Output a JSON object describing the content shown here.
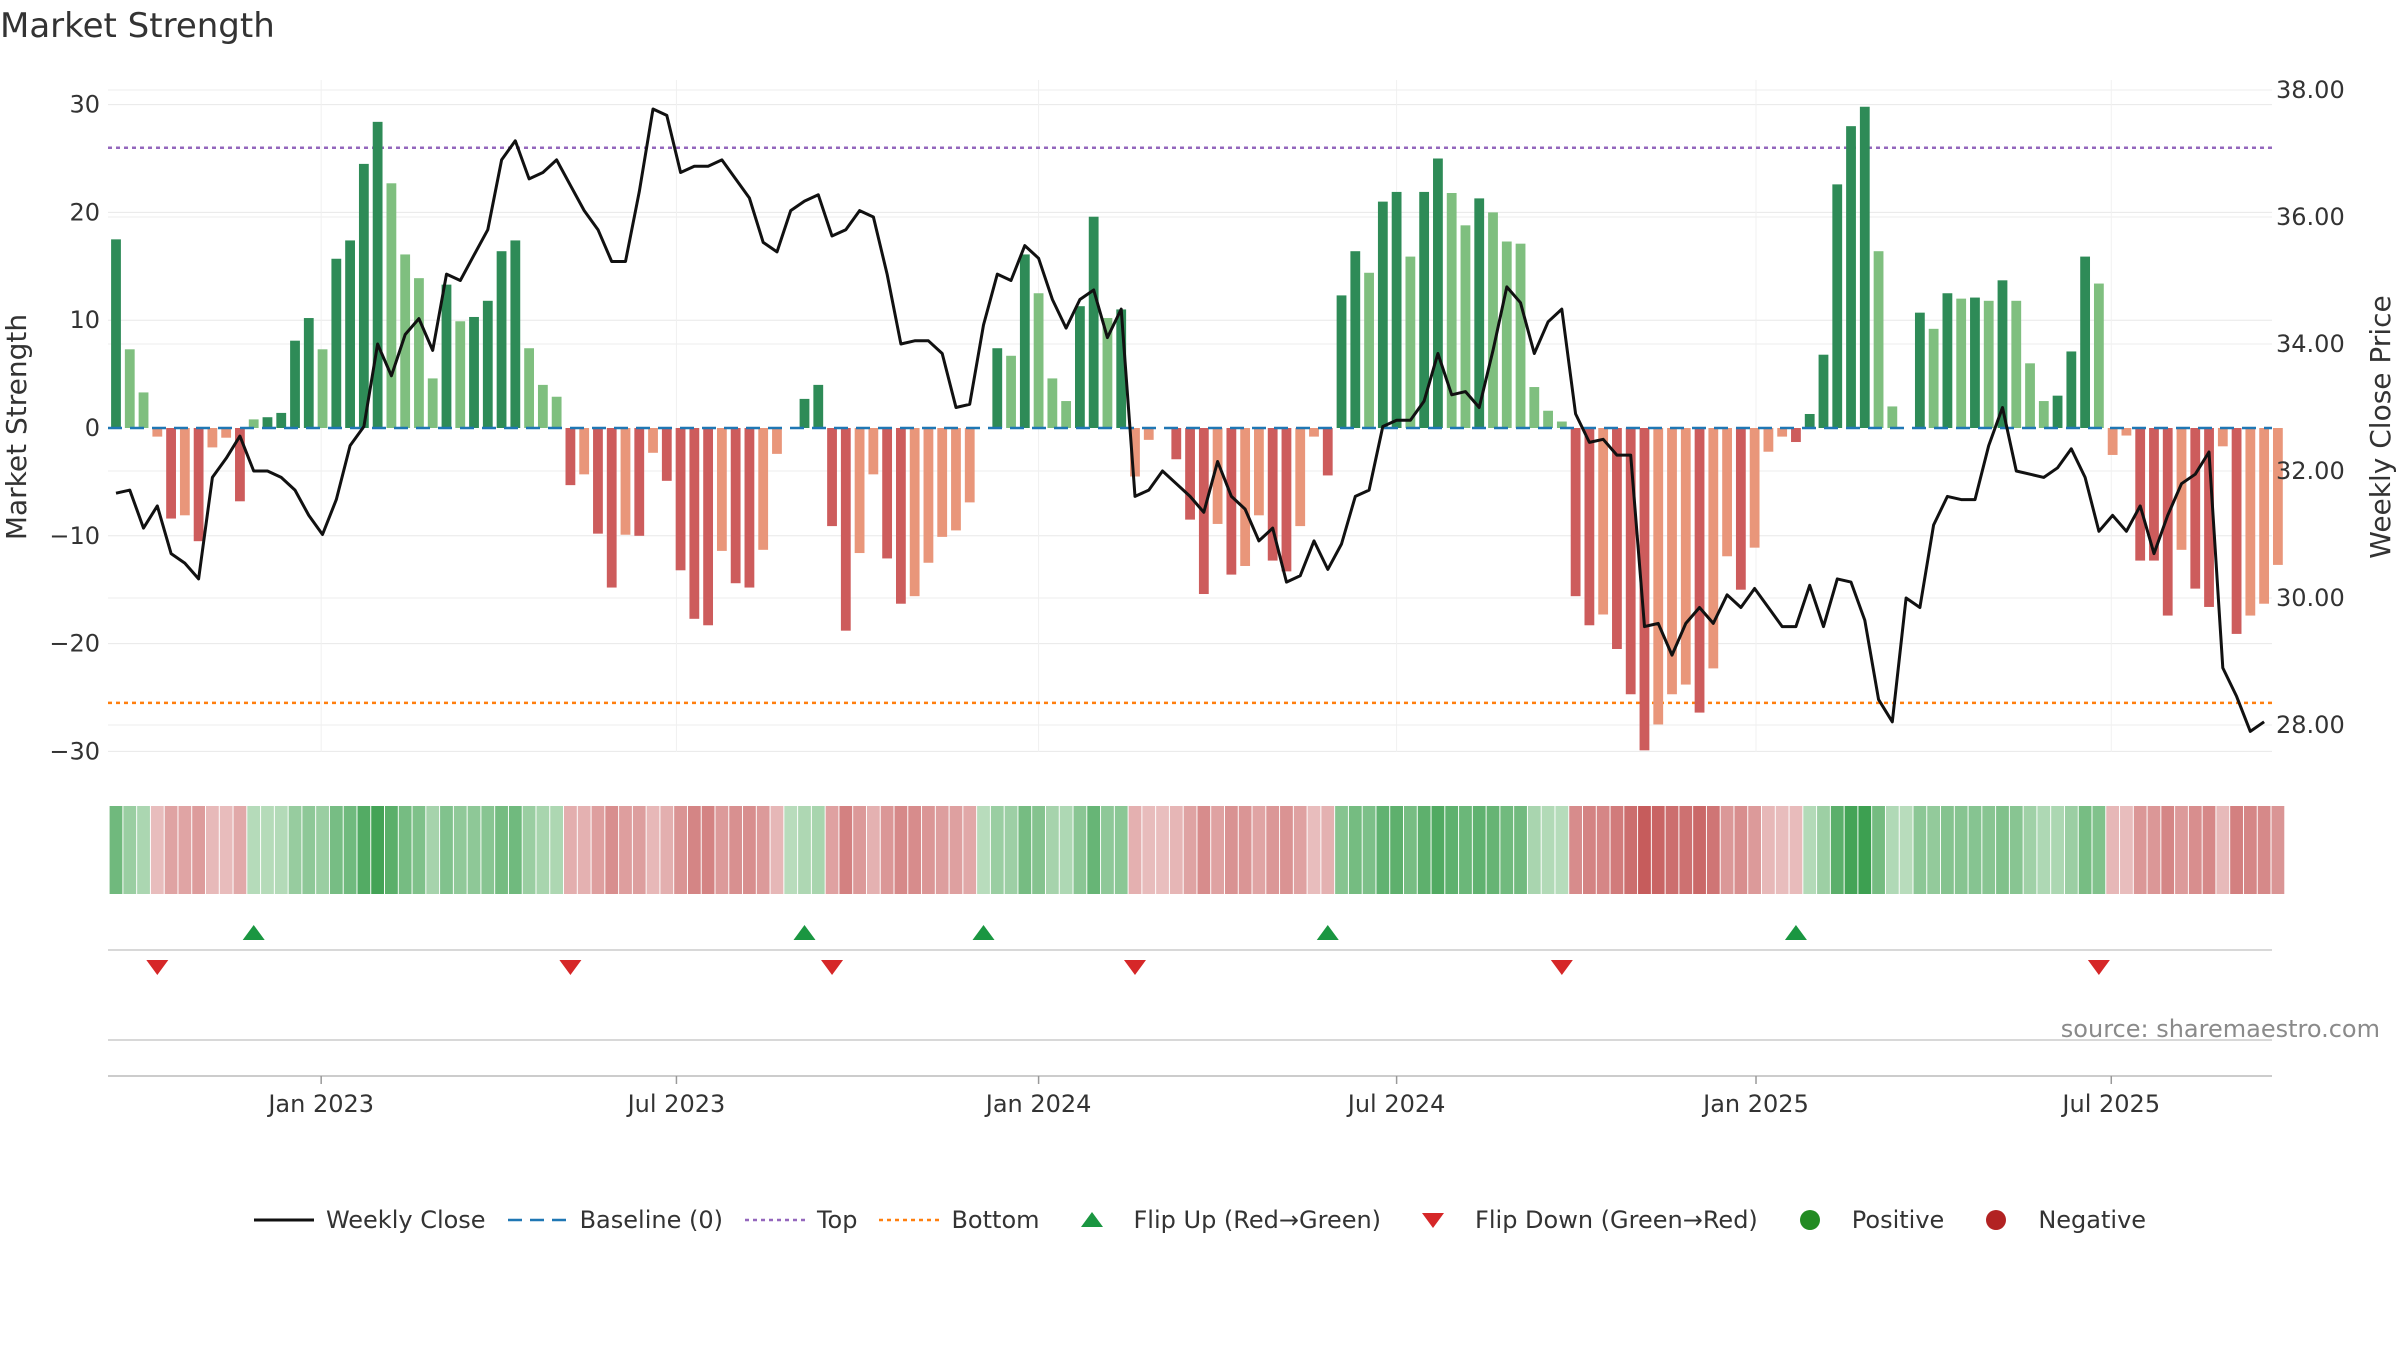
{
  "title": "Market Strength",
  "source": "source: sharemaestro.com",
  "chart_data": {
    "type": "bar+line",
    "title": "Market Strength",
    "ylabel_left": "Market Strength",
    "ylabel_right": "Weekly Close Price",
    "ylim_left": [
      -35,
      32
    ],
    "ylim_right": [
      27.0,
      38.4
    ],
    "yticks_left": [
      30,
      20,
      10,
      0,
      -10,
      -20,
      -30
    ],
    "yticks_left_labels": [
      "30",
      "20",
      "10",
      "0",
      "−10",
      "−20",
      "−30"
    ],
    "yticks_right": [
      38,
      36,
      34,
      32,
      30,
      28
    ],
    "yticks_right_labels": [
      "38.00",
      "36.00",
      "34.00",
      "32.00",
      "30.00",
      "28.00"
    ],
    "x_start_week": -1,
    "x_end_week": 155,
    "x_ticks": [
      {
        "week": 14.9,
        "label": "Jan 2023"
      },
      {
        "week": 40.7,
        "label": "Jul 2023"
      },
      {
        "week": 67,
        "label": "Jan 2024"
      },
      {
        "week": 93,
        "label": "Jul 2024"
      },
      {
        "week": 119.1,
        "label": "Jan 2025"
      },
      {
        "week": 144.9,
        "label": "Jul 2025"
      }
    ],
    "top_level": 26,
    "bottom_level": -25.5,
    "baseline": 0,
    "strength": [
      17.5,
      7.3,
      3.3,
      -0.8,
      -8.4,
      -8.1,
      -10.5,
      -1.8,
      -0.9,
      -6.8,
      0.8,
      1.0,
      1.4,
      8.1,
      10.2,
      7.3,
      15.7,
      17.4,
      24.5,
      28.4,
      22.7,
      16.1,
      13.9,
      4.6,
      13.3,
      9.9,
      10.3,
      11.8,
      16.4,
      17.4,
      7.4,
      4.0,
      2.9,
      -5.3,
      -4.3,
      -9.8,
      -14.8,
      -9.9,
      -10.0,
      -2.3,
      -4.9,
      -13.2,
      -17.7,
      -18.3,
      -11.4,
      -14.4,
      -14.8,
      -11.3,
      -2.4,
      0,
      2.7,
      4.0,
      -9.1,
      -18.8,
      -11.6,
      -4.3,
      -12.1,
      -16.3,
      -15.6,
      -12.5,
      -10.1,
      -9.5,
      -6.9,
      0,
      7.4,
      6.7,
      16.1,
      12.5,
      4.6,
      2.5,
      11.3,
      19.6,
      10.2,
      11.0,
      -4.5,
      -1.1,
      0,
      -2.9,
      -8.5,
      -15.4,
      -8.9,
      -13.6,
      -12.8,
      -8.1,
      -12.3,
      -13.3,
      -9.1,
      -0.8,
      -4.4,
      12.3,
      16.4,
      14.4,
      21.0,
      21.9,
      15.9,
      21.9,
      25.0,
      21.8,
      18.8,
      21.3,
      20.0,
      17.3,
      17.1,
      3.8,
      1.6,
      0.6,
      -15.6,
      -18.3,
      -17.3,
      -20.5,
      -24.7,
      -29.9,
      -27.5,
      -24.7,
      -23.8,
      -26.4,
      -22.3,
      -11.9,
      -15.0,
      -11.1,
      -2.2,
      -0.8,
      -1.3,
      1.3,
      6.8,
      22.6,
      28.0,
      29.8,
      16.4,
      2.0,
      0,
      10.7,
      9.2,
      12.5,
      12.0,
      12.1,
      11.8,
      13.7,
      11.8,
      6.0,
      2.5,
      3.0,
      7.1,
      15.9,
      13.4,
      -2.5,
      -0.7,
      -12.3,
      -12.3,
      -17.4,
      -11.3,
      -14.9,
      -16.6,
      -1.7,
      -19.1,
      -17.4,
      -16.3,
      -12.7
    ],
    "weekly_close": [
      31.65,
      31.7,
      31.1,
      31.45,
      30.7,
      30.55,
      30.3,
      31.9,
      32.2,
      32.55,
      32.0,
      32.0,
      31.9,
      31.7,
      31.3,
      31.0,
      31.55,
      32.4,
      32.7,
      34.0,
      33.5,
      34.15,
      34.4,
      33.9,
      35.1,
      35.0,
      35.4,
      35.8,
      36.9,
      37.2,
      36.6,
      36.7,
      36.9,
      36.5,
      36.1,
      35.8,
      35.3,
      35.3,
      36.4,
      37.7,
      37.6,
      36.7,
      36.8,
      36.8,
      36.9,
      36.6,
      36.3,
      35.6,
      35.45,
      36.1,
      36.25,
      36.35,
      35.7,
      35.8,
      36.1,
      36.0,
      35.1,
      34.0,
      34.05,
      34.05,
      33.85,
      33.0,
      33.05,
      34.3,
      35.1,
      35.0,
      35.55,
      35.35,
      34.7,
      34.25,
      34.7,
      34.85,
      34.1,
      34.55,
      31.6,
      31.7,
      32.0,
      31.8,
      31.6,
      31.35,
      32.15,
      31.6,
      31.4,
      30.9,
      31.1,
      30.25,
      30.35,
      30.9,
      30.45,
      30.85,
      31.6,
      31.7,
      32.7,
      32.8,
      32.8,
      33.1,
      33.85,
      33.2,
      33.25,
      33.0,
      33.9,
      34.9,
      34.65,
      33.85,
      34.35,
      34.55,
      32.9,
      32.45,
      32.5,
      32.25,
      32.25,
      29.55,
      29.6,
      29.1,
      29.6,
      29.85,
      29.6,
      30.05,
      29.85,
      30.15,
      29.85,
      29.55,
      29.55,
      30.2,
      29.55,
      30.3,
      30.25,
      29.65,
      28.4,
      28.05,
      30.0,
      29.85,
      31.15,
      31.6,
      31.55,
      31.55,
      32.4,
      33.0,
      32.0,
      31.95,
      31.9,
      32.05,
      32.35,
      31.9,
      31.05,
      31.3,
      31.05,
      31.45,
      30.7,
      31.3,
      31.8,
      31.95,
      32.3,
      28.9,
      28.45,
      27.9,
      28.05
    ],
    "heat_strength": [
      17.5,
      7.3,
      3.3,
      -0.8,
      -8.4,
      -8.1,
      -10.5,
      -1.8,
      -0.9,
      -6.8,
      0.8,
      1.0,
      1.4,
      8.1,
      10.2,
      7.3,
      15.7,
      17.4,
      24.5,
      28.4,
      22.7,
      16.1,
      13.9,
      4.6,
      13.3,
      9.9,
      10.3,
      11.8,
      16.4,
      17.4,
      7.4,
      4.0,
      2.9,
      -5.3,
      -4.3,
      -9.8,
      -14.8,
      -9.9,
      -10.0,
      -2.3,
      -4.9,
      -13.2,
      -17.7,
      -18.3,
      -11.4,
      -14.4,
      -14.8,
      -11.3,
      -2.4,
      0.3,
      2.7,
      4.0,
      -9.1,
      -18.8,
      -11.6,
      -4.3,
      -12.1,
      -16.3,
      -15.6,
      -12.5,
      -10.1,
      -9.5,
      -6.9,
      0.3,
      7.4,
      6.7,
      16.1,
      12.5,
      4.6,
      2.5,
      11.3,
      19.6,
      10.2,
      11.0,
      -4.5,
      -1.1,
      -0.3,
      -2.9,
      -8.5,
      -15.4,
      -8.9,
      -13.6,
      -12.8,
      -8.1,
      -12.3,
      -13.3,
      -9.1,
      -0.8,
      -4.4,
      12.3,
      16.4,
      14.4,
      21.0,
      21.9,
      15.9,
      21.9,
      25.0,
      21.8,
      18.8,
      21.3,
      20.0,
      17.3,
      17.1,
      3.8,
      1.6,
      0.6,
      -15.6,
      -18.3,
      -17.3,
      -20.5,
      -24.7,
      -29.9,
      -27.5,
      -24.7,
      -23.8,
      -26.4,
      -22.3,
      -11.9,
      -15.0,
      -11.1,
      -2.2,
      -0.8,
      -1.3,
      1.3,
      6.8,
      22.6,
      28.0,
      29.8,
      16.4,
      2.0,
      0.3,
      10.7,
      9.2,
      12.5,
      12.0,
      12.1,
      11.8,
      13.7,
      11.8,
      6.0,
      2.5,
      3.0,
      7.1,
      15.9,
      13.4,
      -2.5,
      -0.7,
      -12.3,
      -12.3,
      -17.4,
      -11.3,
      -14.9,
      -16.6,
      -1.7,
      -19.1,
      -17.4,
      -16.3,
      -12.7
    ],
    "flip_up_weeks": [
      10,
      50,
      63,
      88,
      122
    ],
    "flip_down_weeks": [
      3,
      33,
      52,
      74,
      105,
      144
    ],
    "colors": {
      "pos_dark": "#2e8b57",
      "pos_light": "#7fbf7f",
      "neg_dark": "#cd5c5c",
      "neg_light": "#e9967a",
      "line": "#111111",
      "baseline": "#1f77b4",
      "top": "#9467bd",
      "bottom": "#ff7f0e",
      "flip_up": "#1a9641",
      "flip_down": "#d62728",
      "positive_dot": "#228b22",
      "negative_dot": "#b22222"
    }
  },
  "legend": [
    {
      "key": "weekly_close",
      "label": "Weekly Close",
      "icon": "solid-line-icon",
      "color": "#111111"
    },
    {
      "key": "baseline",
      "label": "Baseline (0)",
      "icon": "dashed-line-icon",
      "color": "#1f77b4"
    },
    {
      "key": "top",
      "label": "Top",
      "icon": "dotted-line-icon",
      "color": "#9467bd"
    },
    {
      "key": "bottom",
      "label": "Bottom",
      "icon": "dotted-line-icon",
      "color": "#ff7f0e"
    },
    {
      "key": "flip_up",
      "label": "Flip Up (Red→Green)",
      "icon": "triangle-up-icon",
      "color": "#1a9641"
    },
    {
      "key": "flip_down",
      "label": "Flip Down (Green→Red)",
      "icon": "triangle-down-icon",
      "color": "#d62728"
    },
    {
      "key": "positive",
      "label": "Positive",
      "icon": "circle-icon",
      "color": "#228b22"
    },
    {
      "key": "negative",
      "label": "Negative",
      "icon": "circle-icon",
      "color": "#b22222"
    }
  ]
}
